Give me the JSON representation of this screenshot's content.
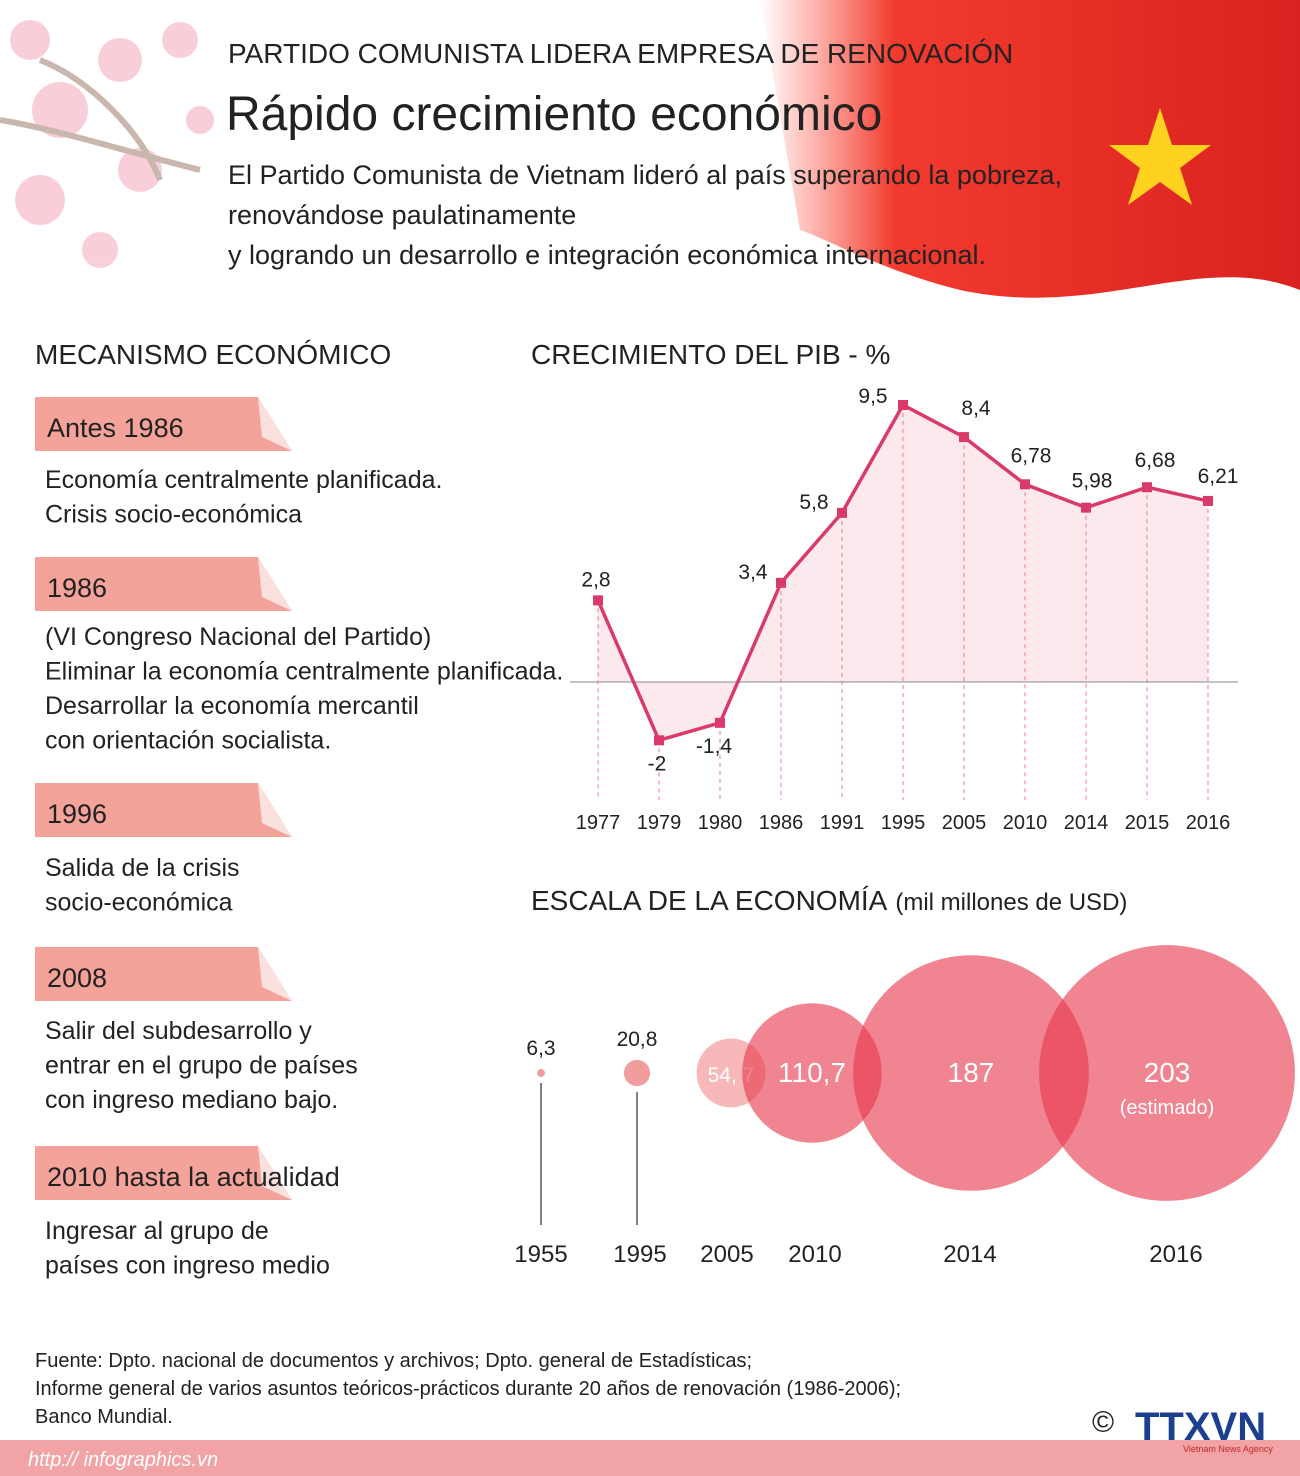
{
  "header": {
    "kicker": "PARTIDO COMUNISTA LIDERA EMPRESA DE RENOVACIÓN",
    "title": "Rápido crecimiento económico",
    "subtitle": [
      "El Partido Comunista de Vietnam lideró al país superando la pobreza,",
      "renovándose paulatinamente",
      "y logrando un desarrollo e integración económica internacional."
    ]
  },
  "mechanism": {
    "title": "MECANISMO ECONÓMICO",
    "items": [
      {
        "label": "Antes 1986",
        "text": [
          "Economía centralmente planificada.",
          "Crisis socio-económica"
        ]
      },
      {
        "label": "1986",
        "text": [
          "(VI Congreso Nacional del Partido)",
          "Eliminar la economía centralmente planificada.",
          "Desarrollar la economía mercantil",
          "con orientación socialista."
        ]
      },
      {
        "label": "1996",
        "text": [
          "Salida de la crisis",
          "socio-económica"
        ]
      },
      {
        "label": "2008",
        "text": [
          "Salir del subdesarrollo y",
          "entrar en el grupo de países",
          "con ingreso mediano bajo."
        ]
      },
      {
        "label": "2010 hasta la actualidad",
        "text": [
          "Ingresar al grupo de",
          "países con ingreso medio"
        ]
      }
    ]
  },
  "chart_data": [
    {
      "type": "line",
      "title": "CRECIMIENTO DEL PIB - %",
      "color": "#d93a6a",
      "categories": [
        "1977",
        "1979",
        "1980",
        "1986",
        "1991",
        "1995",
        "2005",
        "2010",
        "2014",
        "2015",
        "2016"
      ],
      "values": [
        2.8,
        -2,
        -1.4,
        3.4,
        5.8,
        9.5,
        8.4,
        6.78,
        5.98,
        6.68,
        6.21
      ],
      "value_labels": [
        "2,8",
        "-2",
        "-1,4",
        "3,4",
        "5,8",
        "9,5",
        "8,4",
        "6,78",
        "5,98",
        "6,68",
        "6,21"
      ]
    },
    {
      "type": "bubble",
      "title": "ESCALA DE LA ECONOMÍA",
      "subtitle": "(mil millones de USD)",
      "color": "#e8394d",
      "categories": [
        "1955",
        "1995",
        "2005",
        "2010",
        "2014",
        "2016"
      ],
      "values": [
        6.3,
        20.8,
        54.7,
        110.7,
        187,
        203
      ],
      "value_labels": [
        "6,3",
        "20,8",
        "54, 7",
        "110,7",
        "187",
        "203"
      ],
      "annotation": "(estimado)"
    }
  ],
  "footer": {
    "source": [
      "Fuente: Dpto. nacional de documentos y archivos; Dpto. general de Estadísticas;",
      "Informe general de varios asuntos teóricos-prácticos durante 20 años de renovación (1986-2006);",
      "Banco Mundial."
    ],
    "url": "http:// infographics.vn",
    "copyright": "©",
    "logo": "TTXVN",
    "agency": "Vietnam News Agency"
  }
}
